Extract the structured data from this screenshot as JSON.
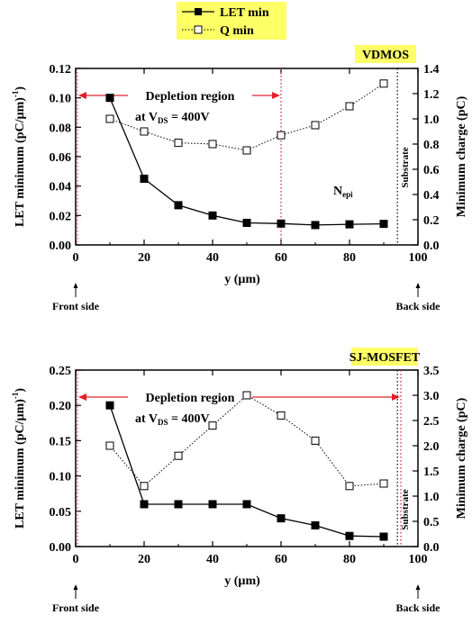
{
  "legend": {
    "items": [
      {
        "label": "LET min",
        "marker": "filled-square",
        "line": "solid"
      },
      {
        "label": "Q min",
        "marker": "open-square",
        "line": "dotted"
      }
    ],
    "background": "#ffff66"
  },
  "colors": {
    "label_box": "#ffff66",
    "depletion_arrow": "#e0202a",
    "depletion_line": "#d02030",
    "substrate_line": "#000000",
    "series": "#000000"
  },
  "chart_data": [
    {
      "type": "line",
      "panel_label": "VDMOS",
      "x_axis": {
        "label": "y (µm)",
        "ticks": [
          0,
          20,
          40,
          60,
          80,
          100
        ],
        "range": [
          0,
          100
        ]
      },
      "y_left": {
        "label": "LET minimum (pC/µm)",
        "label_superscript": "-1",
        "ticks": [
          "0.00",
          "0.02",
          "0.04",
          "0.06",
          "0.08",
          "0.10",
          "0.12"
        ],
        "range": [
          0,
          0.12
        ]
      },
      "y_right": {
        "label": "Minimum charge (pC)",
        "ticks": [
          "0.0",
          "0.2",
          "0.4",
          "0.6",
          "0.8",
          "1.0",
          "1.2",
          "1.4"
        ],
        "range": [
          0,
          1.4
        ]
      },
      "series": [
        {
          "name": "LET min",
          "axis": "left",
          "x": [
            10,
            20,
            30,
            40,
            50,
            60,
            70,
            80,
            90
          ],
          "values": [
            0.1,
            0.045,
            0.027,
            0.02,
            0.015,
            0.0145,
            0.0135,
            0.014,
            0.0143
          ]
        },
        {
          "name": "Q min",
          "axis": "right",
          "x": [
            10,
            20,
            30,
            40,
            50,
            60,
            70,
            80,
            90
          ],
          "values": [
            1.0,
            0.9,
            0.81,
            0.8,
            0.75,
            0.87,
            0.95,
            1.1,
            1.28
          ]
        }
      ],
      "annotations": {
        "depletion_title": "Depletion region",
        "depletion_bias_prefix": "at V",
        "depletion_bias_sub": "DS",
        "depletion_bias_suffix": " = 400V",
        "depletion_x_range": [
          0,
          60
        ],
        "substrate_label": "Substrate",
        "substrate_x": 94,
        "region_label": "N",
        "region_label_sub": "epi",
        "front_label": "Front side",
        "back_label": "Back side"
      }
    },
    {
      "type": "line",
      "panel_label": "SJ-MOSFET",
      "x_axis": {
        "label": "y (µm)",
        "ticks": [
          0,
          20,
          40,
          60,
          80,
          100
        ],
        "range": [
          0,
          100
        ]
      },
      "y_left": {
        "label": "LET minimum (pC/µm)",
        "label_superscript": "-1",
        "ticks": [
          "0.00",
          "0.05",
          "0.10",
          "0.15",
          "0.20",
          "0.25"
        ],
        "range": [
          0,
          0.25
        ]
      },
      "y_right": {
        "label": "Minimum charge (pC)",
        "ticks": [
          "0.0",
          "0.5",
          "1.0",
          "1.5",
          "2.0",
          "2.5",
          "3.0",
          "3.5"
        ],
        "range": [
          0,
          3.5
        ]
      },
      "series": [
        {
          "name": "LET min",
          "axis": "left",
          "x": [
            10,
            20,
            30,
            40,
            50,
            60,
            70,
            80,
            90
          ],
          "values": [
            0.2,
            0.06,
            0.06,
            0.06,
            0.06,
            0.04,
            0.03,
            0.015,
            0.014
          ]
        },
        {
          "name": "Q min",
          "axis": "right",
          "x": [
            10,
            20,
            30,
            40,
            50,
            60,
            70,
            80,
            90
          ],
          "values": [
            2.0,
            1.2,
            1.8,
            2.4,
            3.0,
            2.6,
            2.1,
            1.2,
            1.25
          ]
        }
      ],
      "annotations": {
        "depletion_title": "Depletion region",
        "depletion_bias_prefix": "at V",
        "depletion_bias_sub": "DS",
        "depletion_bias_suffix": " = 400V",
        "depletion_x_range": [
          0,
          95
        ],
        "substrate_label": "Substrate",
        "substrate_x": 94,
        "region_label": "",
        "region_label_sub": "",
        "front_label": "Front side",
        "back_label": "Back side"
      }
    }
  ]
}
